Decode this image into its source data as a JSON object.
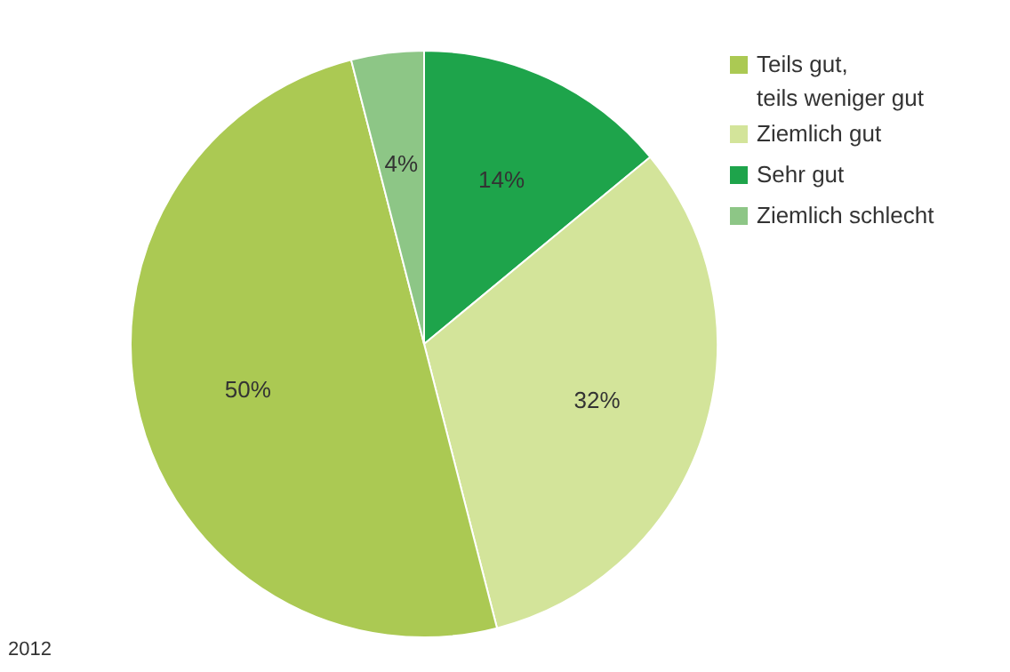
{
  "chart_data": {
    "type": "pie",
    "categories": [
      "Sehr gut",
      "Ziemlich gut",
      "Teils gut, teils weniger gut",
      "Ziemlich schlecht"
    ],
    "values": [
      14,
      32,
      50,
      4
    ],
    "colors": [
      "#1ea44b",
      "#d3e49a",
      "#abc953",
      "#8dc686"
    ],
    "value_labels": [
      "14%",
      "32%",
      "50%",
      "4%"
    ],
    "legend": "top right",
    "annotations": [
      "2012"
    ]
  }
}
